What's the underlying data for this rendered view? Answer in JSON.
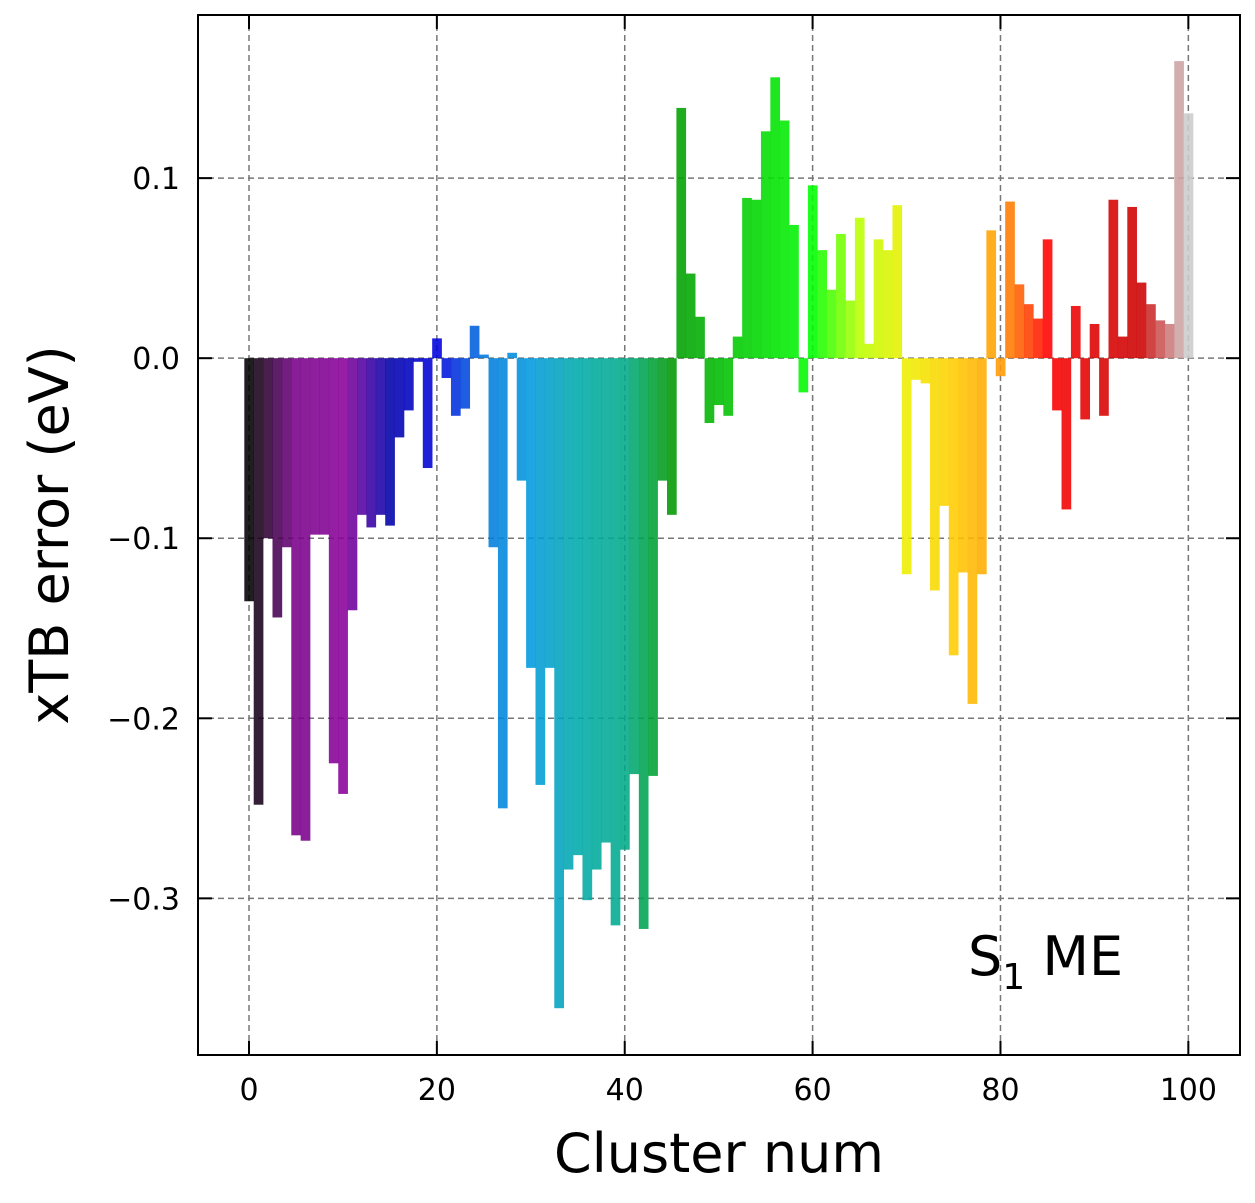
{
  "chart_data": {
    "type": "bar",
    "xlabel": "Cluster num",
    "ylabel": "xTB error (eV)",
    "annotation": [
      "S",
      "1",
      " ME"
    ],
    "x": [
      0,
      1,
      2,
      3,
      4,
      5,
      6,
      7,
      8,
      9,
      10,
      11,
      12,
      13,
      14,
      15,
      16,
      17,
      18,
      19,
      20,
      21,
      22,
      23,
      24,
      25,
      26,
      27,
      28,
      29,
      30,
      31,
      32,
      33,
      34,
      35,
      36,
      37,
      38,
      39,
      40,
      41,
      42,
      43,
      44,
      45,
      46,
      47,
      48,
      49,
      50,
      51,
      52,
      53,
      54,
      55,
      56,
      57,
      58,
      59,
      60,
      61,
      62,
      63,
      64,
      65,
      66,
      67,
      68,
      69,
      70,
      71,
      72,
      73,
      74,
      75,
      76,
      77,
      78,
      79,
      80,
      81,
      82,
      83,
      84,
      85,
      86,
      87,
      88,
      89,
      90,
      91,
      92,
      93,
      94,
      95,
      96,
      97,
      98,
      99,
      100
    ],
    "values": [
      -0.135,
      -0.248,
      -0.1,
      -0.144,
      -0.105,
      -0.265,
      -0.268,
      -0.098,
      -0.098,
      -0.225,
      -0.242,
      -0.14,
      -0.087,
      -0.094,
      -0.087,
      -0.093,
      -0.044,
      -0.029,
      -0.002,
      -0.061,
      0.011,
      -0.011,
      -0.032,
      -0.028,
      0.018,
      0.002,
      -0.105,
      -0.25,
      0.003,
      -0.068,
      -0.172,
      -0.237,
      -0.172,
      -0.361,
      -0.284,
      -0.276,
      -0.301,
      -0.284,
      -0.269,
      -0.315,
      -0.273,
      -0.231,
      -0.317,
      -0.232,
      -0.068,
      -0.087,
      0.139,
      0.047,
      0.023,
      -0.036,
      -0.026,
      -0.032,
      0.012,
      0.089,
      0.088,
      0.126,
      0.156,
      0.132,
      0.074,
      -0.019,
      0.096,
      0.06,
      0.038,
      0.069,
      0.032,
      0.078,
      0.008,
      0.066,
      0.06,
      0.085,
      -0.12,
      -0.012,
      -0.014,
      -0.129,
      -0.082,
      -0.165,
      -0.119,
      -0.192,
      -0.12,
      0.071,
      -0.01,
      0.087,
      0.041,
      0.03,
      0.022,
      0.066,
      -0.029,
      -0.084,
      0.029,
      -0.034,
      0.019,
      -0.032,
      0.088,
      0.012,
      0.084,
      0.042,
      0.03,
      0.021,
      0.019,
      0.165,
      0.136
    ],
    "colormap": [
      "#000000",
      "#770088",
      "#880099",
      "#0000aa",
      "#0000dd",
      "#0077dd",
      "#0099dd",
      "#00aaaa",
      "#00aa88",
      "#009900",
      "#00bb00",
      "#00dd00",
      "#00ff00",
      "#bbff00",
      "#eeee00",
      "#ffcc00",
      "#ff9900",
      "#ff0000",
      "#dd0000",
      "#cc0000",
      "#cccccc"
    ],
    "bar_opacity": 0.88,
    "xlim": [
      -5.43,
      105.5
    ],
    "ylim": [
      -0.387,
      0.1906
    ],
    "xticks": [
      0,
      20,
      40,
      60,
      80,
      100
    ],
    "yticks": [
      {
        "value": -0.3,
        "label": "−0.3"
      },
      {
        "value": -0.2,
        "label": "−0.2"
      },
      {
        "value": -0.1,
        "label": "−0.1"
      },
      {
        "value": 0,
        "label": "0.0"
      },
      0.1
    ],
    "grid": true
  }
}
